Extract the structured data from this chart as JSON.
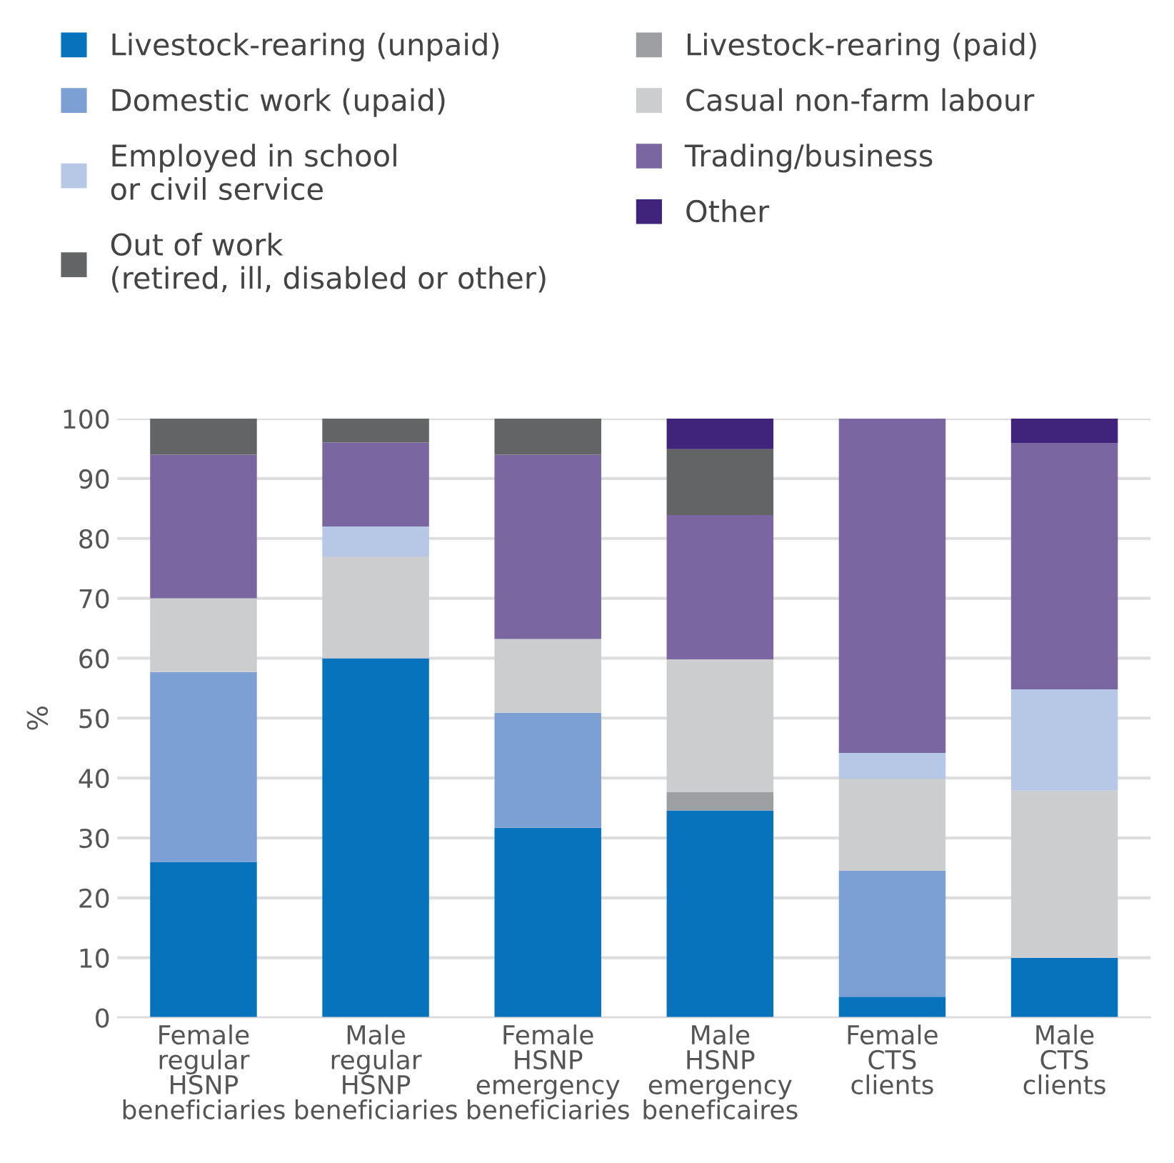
{
  "chart_data": {
    "type": "bar",
    "stacked": true,
    "ylabel": "%",
    "categories": [
      "Female\nregular\nHSNP\nbeneficiaries",
      "Male\nregular\nHSNP\nbeneficiaries",
      "Female\nHSNP\nemergency\nbeneficiaries",
      "Male\nHSNP\nemergency\nbeneficaires",
      "Female\nCTS\nclients",
      "Male\nCTS\nclients"
    ],
    "series": [
      {
        "name": "Livestock-rearing (unpaid)",
        "color": "#0673bc",
        "values": [
          26.0,
          60.0,
          31.7,
          34.6,
          3.5,
          10.0
        ]
      },
      {
        "name": "Livestock-rearing (paid)",
        "color": "#9d9fa2",
        "values": [
          null,
          null,
          null,
          3.1,
          null,
          null
        ]
      },
      {
        "name": "Domestic work (upaid)",
        "color": "#7ca0d3",
        "values": [
          31.7,
          null,
          19.2,
          null,
          21.0,
          null
        ]
      },
      {
        "name": "Casual non-farm labour",
        "color": "#cccdcf",
        "values": [
          12.3,
          17.0,
          12.3,
          22.1,
          15.4,
          27.9
        ]
      },
      {
        "name": "Employed in school\nor civil service",
        "color": "#b7c8e6",
        "values": [
          null,
          5.0,
          null,
          null,
          4.3,
          16.9
        ]
      },
      {
        "name": "Trading/business",
        "color": "#7a67a1",
        "values": [
          24.0,
          14.0,
          30.8,
          24.1,
          55.8,
          41.1
        ]
      },
      {
        "name": "Out of work\n(retired, ill, disabled or other)",
        "color": "#636466",
        "values": [
          6.0,
          4.0,
          6.0,
          11.0,
          null,
          null
        ]
      },
      {
        "name": "Other",
        "color": "#40237a",
        "values": [
          null,
          null,
          null,
          5.1,
          null,
          4.1
        ]
      }
    ],
    "ylim": [
      0,
      100
    ],
    "yticks": [
      0,
      10,
      20,
      30,
      40,
      50,
      60,
      70,
      80,
      90,
      100
    ],
    "grid": "y",
    "legend": "top"
  }
}
